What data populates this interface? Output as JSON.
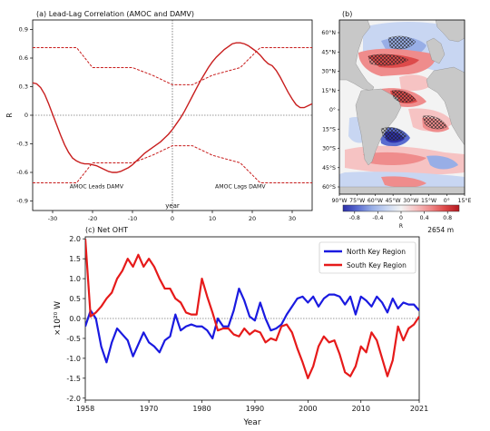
{
  "chart_data": [
    {
      "panel": "a",
      "type": "line",
      "title": "(a) Lead-Lag Correlation (AMOC and DAMV)",
      "xlabel": "year",
      "ylabel": "R",
      "xlim": [
        -35,
        35
      ],
      "ylim": [
        -1.0,
        1.0
      ],
      "xticks": [
        -30,
        -20,
        -10,
        0,
        10,
        20,
        30
      ],
      "yticks": [
        -0.9,
        -0.6,
        -0.3,
        0,
        0.3,
        0.6,
        0.9
      ],
      "ytick_labels": [
        "-0.9",
        "-0.6",
        "-0.3",
        "0",
        "0.3",
        "0.6",
        "0.9"
      ],
      "annotations": [
        {
          "text": "AMOC Leads DAMV",
          "x": -19,
          "y": -0.73
        },
        {
          "text": "AMOC Lags DAMV",
          "x": 17,
          "y": -0.73
        }
      ],
      "color": "#c81e1e",
      "x": [
        -35,
        -34,
        -33,
        -32,
        -31,
        -30,
        -29,
        -28,
        -27,
        -26,
        -25,
        -24,
        -23,
        -22,
        -21,
        -20,
        -19,
        -18,
        -17,
        -16,
        -15,
        -14,
        -13,
        -12,
        -11,
        -10,
        -9,
        -8,
        -7,
        -6,
        -5,
        -4,
        -3,
        -2,
        -1,
        0,
        1,
        2,
        3,
        4,
        5,
        6,
        7,
        8,
        9,
        10,
        11,
        12,
        13,
        14,
        15,
        16,
        17,
        18,
        19,
        20,
        21,
        22,
        23,
        24,
        25,
        26,
        27,
        28,
        29,
        30,
        31,
        32,
        33,
        34,
        35
      ],
      "r": [
        0.34,
        0.33,
        0.29,
        0.22,
        0.12,
        0.01,
        -0.1,
        -0.21,
        -0.31,
        -0.39,
        -0.45,
        -0.48,
        -0.5,
        -0.51,
        -0.51,
        -0.52,
        -0.53,
        -0.55,
        -0.57,
        -0.59,
        -0.6,
        -0.6,
        -0.59,
        -0.57,
        -0.55,
        -0.52,
        -0.48,
        -0.44,
        -0.4,
        -0.37,
        -0.34,
        -0.31,
        -0.28,
        -0.24,
        -0.2,
        -0.15,
        -0.09,
        -0.03,
        0.04,
        0.12,
        0.2,
        0.28,
        0.36,
        0.43,
        0.5,
        0.56,
        0.61,
        0.65,
        0.69,
        0.72,
        0.75,
        0.76,
        0.76,
        0.75,
        0.73,
        0.7,
        0.67,
        0.63,
        0.58,
        0.54,
        0.52,
        0.47,
        0.4,
        0.32,
        0.24,
        0.17,
        0.11,
        0.08,
        0.08,
        0.1,
        0.12
      ],
      "upper_x": [
        -35,
        -24,
        -20,
        -10,
        -5,
        0,
        5,
        10,
        17,
        22,
        35
      ],
      "upper_r": [
        0.71,
        0.71,
        0.5,
        0.5,
        0.42,
        0.32,
        0.32,
        0.42,
        0.5,
        0.71,
        0.71
      ],
      "lower_x": [
        -35,
        -24,
        -20,
        -10,
        -5,
        0,
        5,
        10,
        17,
        22,
        35
      ],
      "lower_r": [
        -0.71,
        -0.71,
        -0.5,
        -0.5,
        -0.42,
        -0.32,
        -0.32,
        -0.42,
        -0.5,
        -0.71,
        -0.71
      ]
    },
    {
      "panel": "b",
      "type": "heatmap",
      "title": "(b)",
      "depth_label": "2654 m",
      "xtick_labels": [
        "90°W",
        "75°W",
        "60°W",
        "45°W",
        "30°W",
        "15°W",
        "0°",
        "15°E"
      ],
      "ytick_labels": [
        "60°N",
        "45°N",
        "30°N",
        "15°N",
        "0°",
        "15°S",
        "30°S",
        "45°S",
        "60°S"
      ],
      "colorbar_label": "R",
      "colorbar_ticks": [
        -0.8,
        -0.4,
        0,
        0.4,
        0.8
      ],
      "colorbar_tick_labels": [
        "-0.8",
        "-0.4",
        "0",
        "0.4",
        "0.8"
      ],
      "colormap": [
        "#2c2fa8",
        "#5a6cd0",
        "#98aee6",
        "#c8d6f2",
        "#f3f3f3",
        "#f6c3c3",
        "#ef8c8c",
        "#dd4a4a",
        "#b3171f"
      ]
    },
    {
      "panel": "c",
      "type": "line",
      "title": "(c) Net OHT",
      "xlabel": "Year",
      "ylabel": "×10²⁰ W",
      "xlim": [
        1958,
        2021
      ],
      "ylim": [
        -2.05,
        2.05
      ],
      "xticks": [
        1958,
        1970,
        1980,
        1990,
        2000,
        2010,
        2021
      ],
      "yticks": [
        -2.0,
        -1.5,
        -1.0,
        -0.5,
        0.0,
        0.5,
        1.0,
        1.5,
        2.0
      ],
      "ytick_labels": [
        "-2.0",
        "-1.5",
        "-1.0",
        "-0.5",
        "0.0",
        "0.5",
        "1.0",
        "1.5",
        "2.0"
      ],
      "legend_position": "top-right",
      "x": [
        1958,
        1959,
        1960,
        1961,
        1962,
        1963,
        1964,
        1965,
        1966,
        1967,
        1968,
        1969,
        1970,
        1971,
        1972,
        1973,
        1974,
        1975,
        1976,
        1977,
        1978,
        1979,
        1980,
        1981,
        1982,
        1983,
        1984,
        1985,
        1986,
        1987,
        1988,
        1989,
        1990,
        1991,
        1992,
        1993,
        1994,
        1995,
        1996,
        1997,
        1998,
        1999,
        2000,
        2001,
        2002,
        2003,
        2004,
        2005,
        2006,
        2007,
        2008,
        2009,
        2010,
        2011,
        2012,
        2013,
        2014,
        2015,
        2016,
        2017,
        2018,
        2019,
        2020,
        2021
      ],
      "series": [
        {
          "name": "North Key Region",
          "color": "#1a1ae0",
          "values": [
            -0.2,
            0.2,
            0.0,
            -0.7,
            -1.1,
            -0.6,
            -0.25,
            -0.4,
            -0.55,
            -0.95,
            -0.65,
            -0.35,
            -0.6,
            -0.7,
            -0.85,
            -0.55,
            -0.45,
            0.1,
            -0.3,
            -0.2,
            -0.15,
            -0.2,
            -0.2,
            -0.3,
            -0.5,
            0.0,
            -0.2,
            -0.2,
            0.2,
            0.75,
            0.45,
            0.05,
            -0.05,
            0.4,
            0.0,
            -0.3,
            -0.25,
            -0.15,
            0.1,
            0.3,
            0.5,
            0.55,
            0.4,
            0.55,
            0.3,
            0.5,
            0.6,
            0.6,
            0.55,
            0.35,
            0.55,
            0.1,
            0.55,
            0.45,
            0.3,
            0.55,
            0.4,
            0.15,
            0.5,
            0.25,
            0.4,
            0.35,
            0.35,
            0.2
          ]
        },
        {
          "name": "South Key Region",
          "color": "#e61a1a",
          "values": [
            2.0,
            0.05,
            0.15,
            0.3,
            0.5,
            0.65,
            1.0,
            1.2,
            1.5,
            1.3,
            1.6,
            1.3,
            1.5,
            1.3,
            1.0,
            0.75,
            0.75,
            0.5,
            0.4,
            0.15,
            0.1,
            0.1,
            1.0,
            0.55,
            0.15,
            -0.3,
            -0.25,
            -0.25,
            -0.4,
            -0.45,
            -0.25,
            -0.4,
            -0.3,
            -0.35,
            -0.6,
            -0.5,
            -0.55,
            -0.2,
            -0.15,
            -0.35,
            -0.75,
            -1.1,
            -1.5,
            -1.2,
            -0.7,
            -0.45,
            -0.6,
            -0.55,
            -0.9,
            -1.35,
            -1.45,
            -1.2,
            -0.7,
            -0.85,
            -0.35,
            -0.55,
            -1.0,
            -1.45,
            -1.05,
            -0.2,
            -0.55,
            -0.25,
            -0.15,
            0.05
          ]
        }
      ]
    }
  ]
}
